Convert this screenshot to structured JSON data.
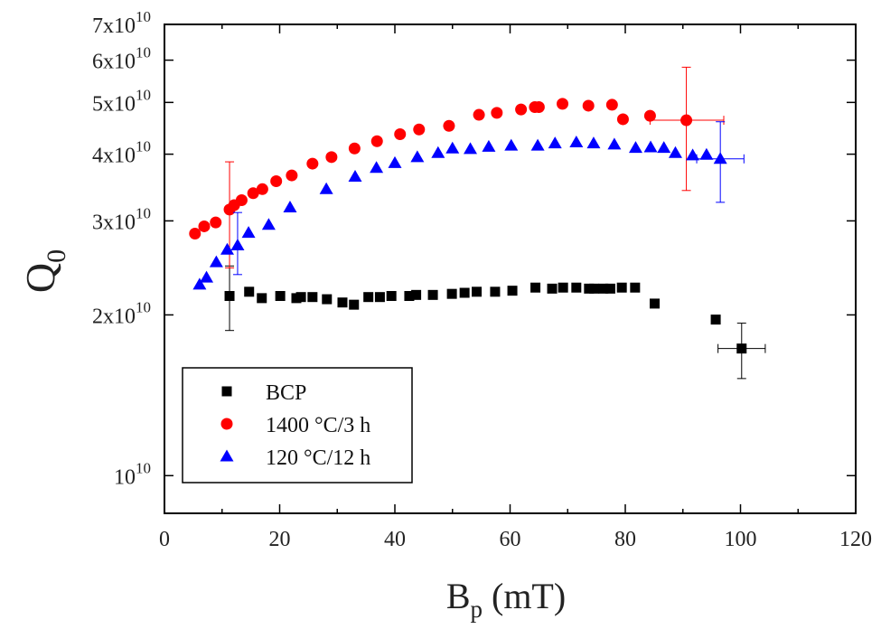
{
  "chart_data": {
    "type": "scatter",
    "title": "",
    "xlabel": {
      "base": "B",
      "sub": "p",
      "suffix": " (mT)"
    },
    "ylabel": {
      "base": "Q",
      "sub": "0"
    },
    "xlim": [
      0,
      120
    ],
    "ylim": [
      8500000000.0,
      70000000000.0
    ],
    "yscale": "log",
    "grid": false,
    "legend_position": "bottom-left",
    "x_ticks": [
      {
        "value": 0,
        "label": "0"
      },
      {
        "value": 20,
        "label": "20"
      },
      {
        "value": 40,
        "label": "40"
      },
      {
        "value": 60,
        "label": "60"
      },
      {
        "value": 80,
        "label": "80"
      },
      {
        "value": 100,
        "label": "100"
      },
      {
        "value": 120,
        "label": "120"
      }
    ],
    "y_ticks": [
      {
        "value": 10000000000.0,
        "mantissa": "",
        "base": "10",
        "exp": "10"
      },
      {
        "value": 20000000000.0,
        "mantissa": "2x",
        "base": "10",
        "exp": "10"
      },
      {
        "value": 30000000000.0,
        "mantissa": "3x",
        "base": "10",
        "exp": "10"
      },
      {
        "value": 40000000000.0,
        "mantissa": "4x",
        "base": "10",
        "exp": "10"
      },
      {
        "value": 50000000000.0,
        "mantissa": "5x",
        "base": "10",
        "exp": "10"
      },
      {
        "value": 60000000000.0,
        "mantissa": "6x",
        "base": "10",
        "exp": "10"
      },
      {
        "value": 70000000000.0,
        "mantissa": "7x",
        "base": "10",
        "exp": "10"
      }
    ],
    "series": [
      {
        "name": "BCP",
        "marker": "square",
        "color": "#000000",
        "points": [
          [
            11.3,
            21700000000.0
          ],
          [
            14.7,
            22100000000.0
          ],
          [
            16.9,
            21500000000.0
          ],
          [
            20.1,
            21700000000.0
          ],
          [
            22.9,
            21500000000.0
          ],
          [
            23.7,
            21600000000.0
          ],
          [
            25.7,
            21600000000.0
          ],
          [
            28.2,
            21400000000.0
          ],
          [
            30.9,
            21100000000.0
          ],
          [
            32.9,
            20900000000.0
          ],
          [
            35.4,
            21600000000.0
          ],
          [
            37.4,
            21600000000.0
          ],
          [
            39.4,
            21700000000.0
          ],
          [
            42.5,
            21700000000.0
          ],
          [
            43.7,
            21800000000.0
          ],
          [
            46.6,
            21800000000.0
          ],
          [
            49.9,
            21900000000.0
          ],
          [
            52.1,
            22000000000.0
          ],
          [
            54.2,
            22100000000.0
          ],
          [
            57.4,
            22100000000.0
          ],
          [
            60.4,
            22200000000.0
          ],
          [
            64.4,
            22500000000.0
          ],
          [
            67.3,
            22400000000.0
          ],
          [
            69.2,
            22500000000.0
          ],
          [
            71.5,
            22500000000.0
          ],
          [
            73.7,
            22400000000.0
          ],
          [
            74.6,
            22400000000.0
          ],
          [
            76.2,
            22400000000.0
          ],
          [
            77.4,
            22400000000.0
          ],
          [
            79.4,
            22500000000.0
          ],
          [
            81.7,
            22500000000.0
          ],
          [
            85.1,
            21000000000.0
          ],
          [
            95.7,
            19600000000.0
          ],
          [
            100.2,
            17300000000.0
          ]
        ],
        "error_bars": [
          {
            "x": 11.3,
            "y": 21700000000.0,
            "y_low": 18700000000.0,
            "y_high": 24700000000.0
          },
          {
            "x": 100.2,
            "y": 17300000000.0,
            "x_low": 96.1,
            "x_high": 104.3,
            "y_low": 15200000000.0,
            "y_high": 19300000000.0
          }
        ]
      },
      {
        "name": "1400 °C/3 h",
        "marker": "circle",
        "color": "#ff0000",
        "points": [
          [
            5.3,
            28400000000.0
          ],
          [
            6.9,
            29300000000.0
          ],
          [
            8.9,
            29800000000.0
          ],
          [
            11.3,
            31500000000.0
          ],
          [
            12.1,
            32100000000.0
          ],
          [
            13.4,
            32800000000.0
          ],
          [
            15.4,
            33800000000.0
          ],
          [
            17.0,
            34400000000.0
          ],
          [
            19.4,
            35600000000.0
          ],
          [
            22.1,
            36500000000.0
          ],
          [
            25.7,
            38400000000.0
          ],
          [
            29.0,
            39500000000.0
          ],
          [
            33.0,
            41000000000.0
          ],
          [
            36.9,
            42300000000.0
          ],
          [
            40.9,
            43600000000.0
          ],
          [
            44.2,
            44500000000.0
          ],
          [
            49.4,
            45200000000.0
          ],
          [
            54.6,
            47400000000.0
          ],
          [
            57.7,
            47800000000.0
          ],
          [
            61.9,
            48500000000.0
          ],
          [
            64.3,
            49000000000.0
          ],
          [
            65.0,
            49000000000.0
          ],
          [
            69.1,
            49700000000.0
          ],
          [
            73.6,
            49300000000.0
          ],
          [
            77.7,
            49500000000.0
          ],
          [
            79.6,
            46500000000.0
          ],
          [
            84.3,
            47200000000.0
          ],
          [
            90.6,
            46300000000.0
          ]
        ],
        "error_bars": [
          {
            "x": 11.3,
            "y": 31500000000.0,
            "y_low": 24500000000.0,
            "y_high": 38700000000.0
          },
          {
            "x": 90.6,
            "y": 46300000000.0,
            "x_low": 84.3,
            "x_high": 97.1,
            "y_low": 34200000000.0,
            "y_high": 58200000000.0
          }
        ]
      },
      {
        "name": "120 °C/12 h",
        "marker": "triangle",
        "color": "#0000ff",
        "points": [
          [
            6.1,
            22800000000.0
          ],
          [
            7.3,
            23500000000.0
          ],
          [
            9.0,
            25100000000.0
          ],
          [
            10.9,
            26500000000.0
          ],
          [
            12.7,
            27000000000.0
          ],
          [
            14.6,
            28500000000.0
          ],
          [
            18.1,
            29500000000.0
          ],
          [
            21.8,
            31800000000.0
          ],
          [
            28.1,
            34400000000.0
          ],
          [
            33.1,
            36300000000.0
          ],
          [
            36.8,
            37700000000.0
          ],
          [
            40.0,
            38500000000.0
          ],
          [
            43.9,
            39500000000.0
          ],
          [
            47.5,
            40200000000.0
          ],
          [
            50.0,
            41000000000.0
          ],
          [
            53.1,
            40900000000.0
          ],
          [
            56.3,
            41300000000.0
          ],
          [
            60.2,
            41500000000.0
          ],
          [
            64.8,
            41500000000.0
          ],
          [
            67.8,
            41900000000.0
          ],
          [
            71.5,
            42100000000.0
          ],
          [
            74.5,
            41900000000.0
          ],
          [
            78.1,
            41700000000.0
          ],
          [
            81.8,
            41100000000.0
          ],
          [
            84.4,
            41200000000.0
          ],
          [
            86.7,
            41100000000.0
          ],
          [
            88.7,
            40200000000.0
          ],
          [
            91.7,
            39800000000.0
          ],
          [
            94.1,
            39900000000.0
          ],
          [
            96.5,
            39200000000.0
          ]
        ],
        "error_bars": [
          {
            "x": 12.7,
            "y": 27000000000.0,
            "y_low": 23800000000.0,
            "y_high": 31100000000.0
          },
          {
            "x": 96.5,
            "y": 39200000000.0,
            "x_low": 92.4,
            "x_high": 100.6,
            "y_low": 32500000000.0,
            "y_high": 46000000000.0
          }
        ]
      }
    ]
  }
}
